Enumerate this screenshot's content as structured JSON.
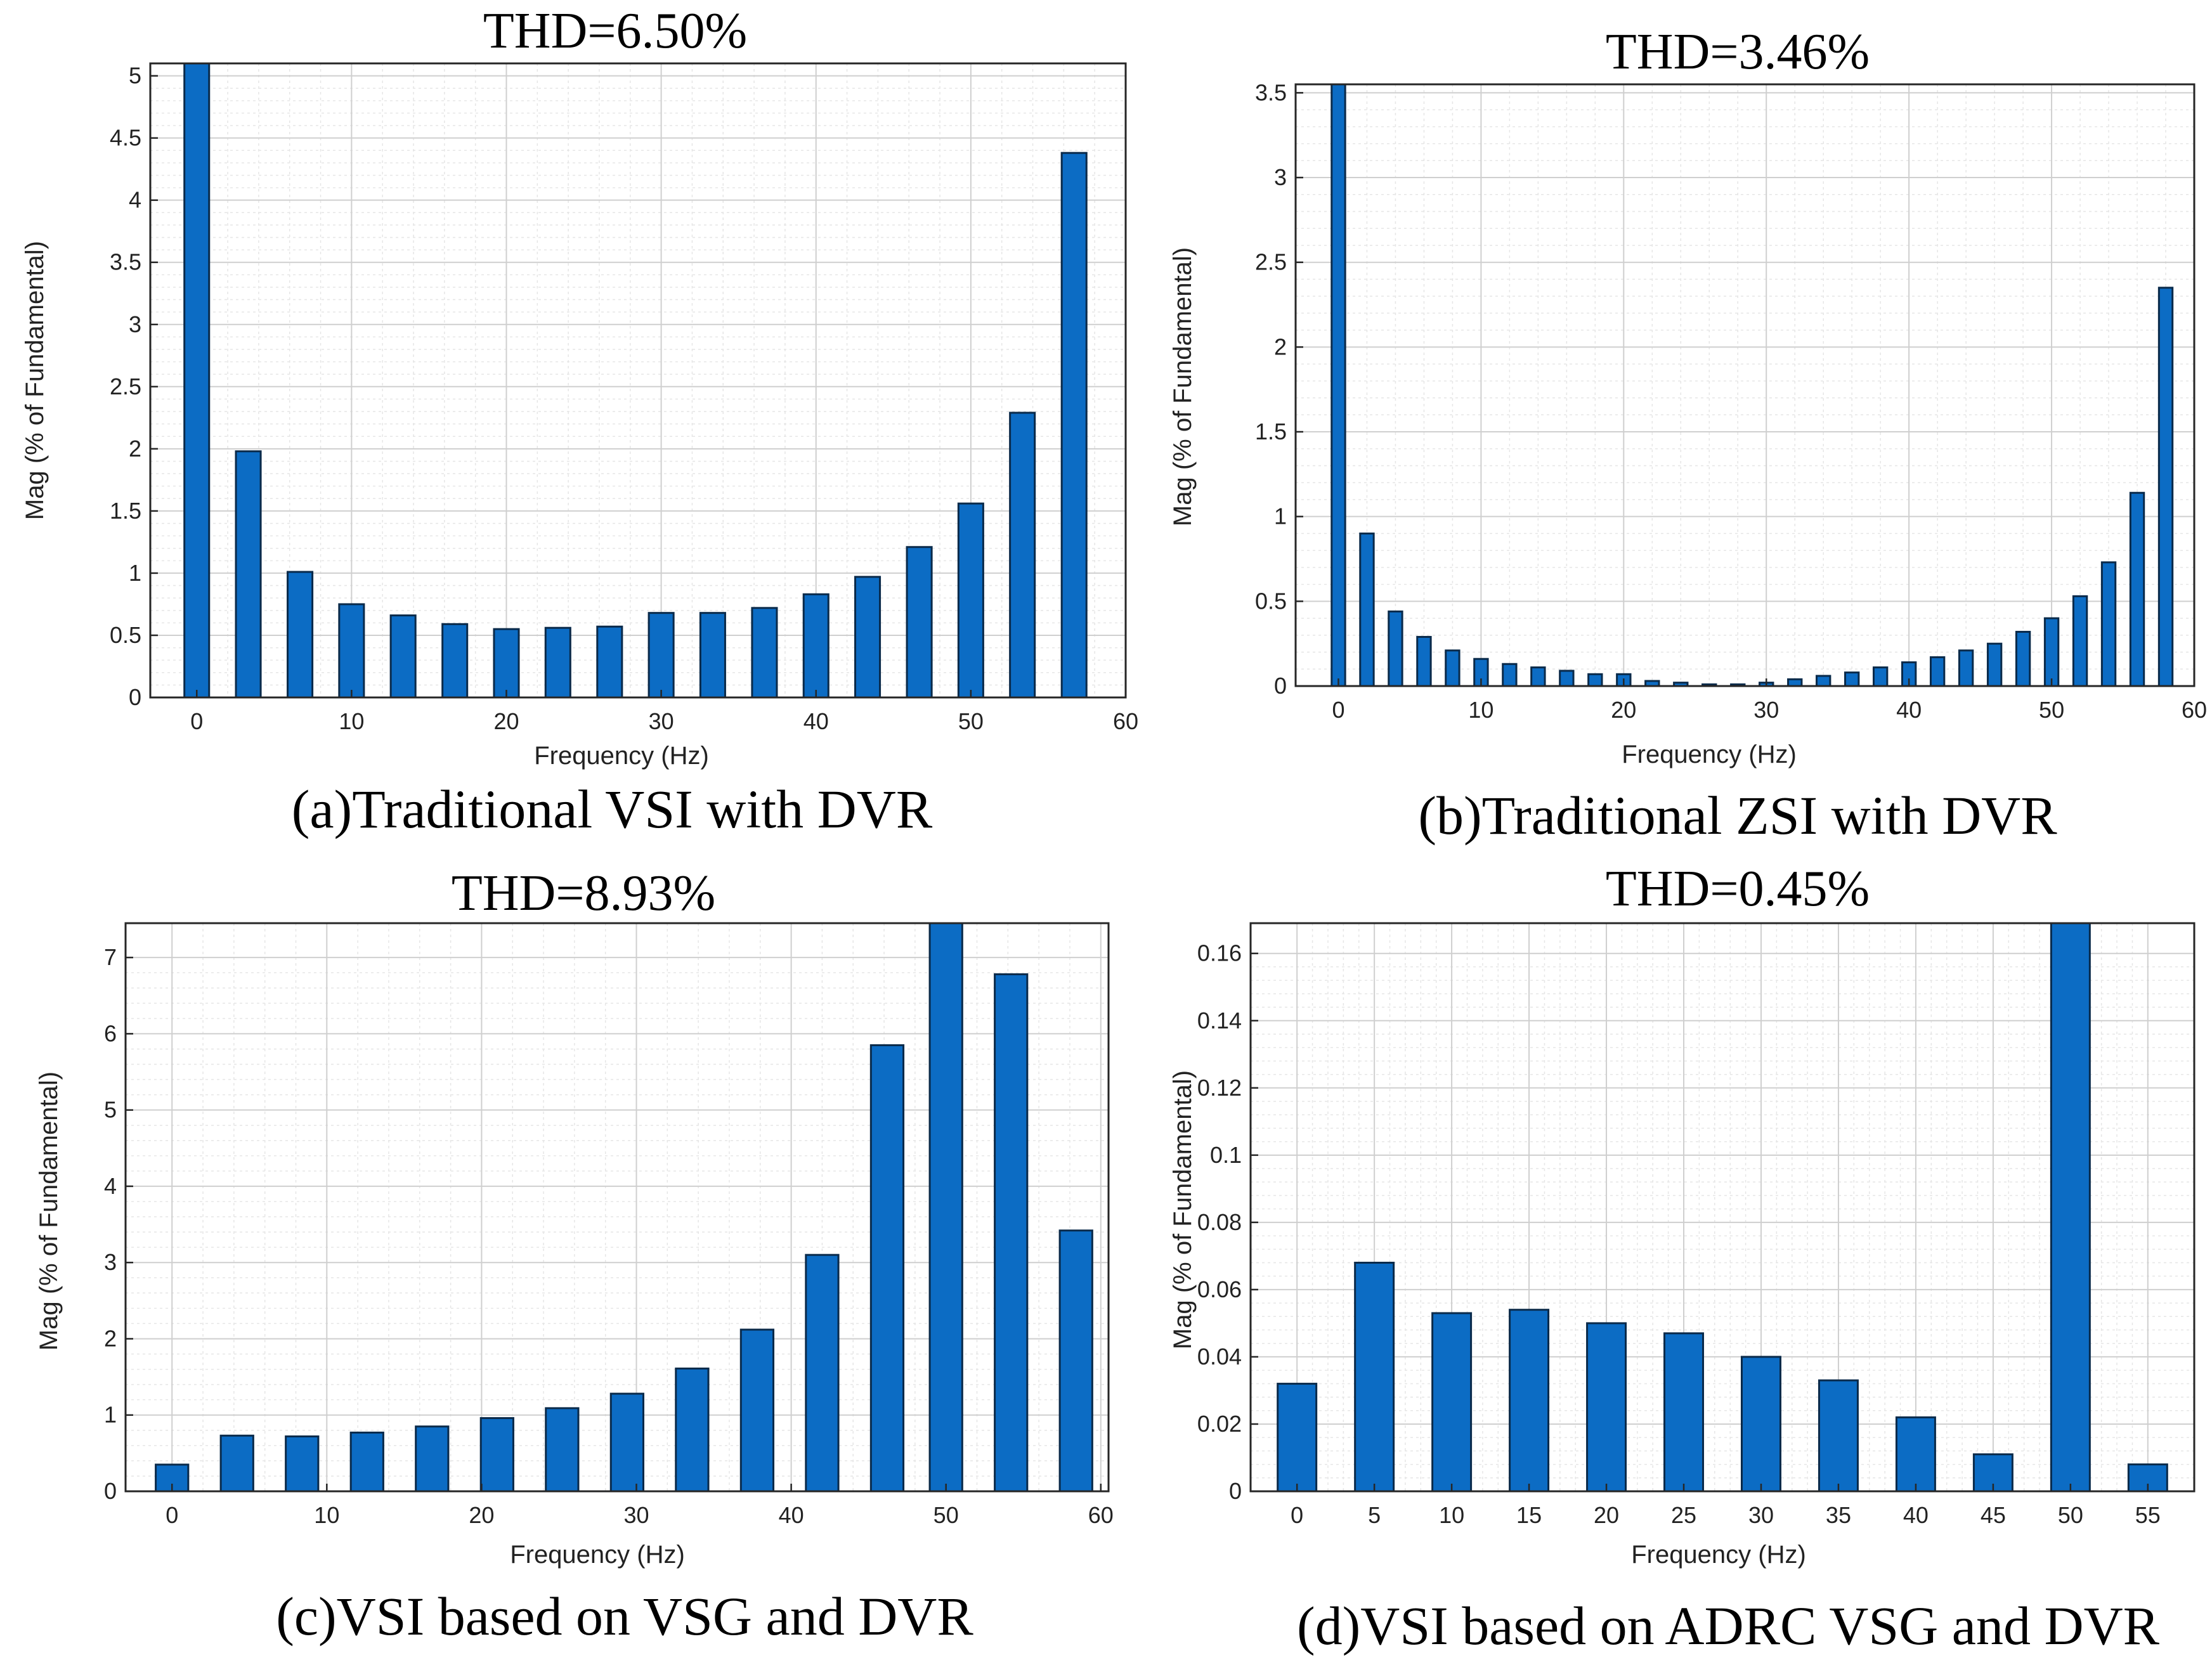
{
  "chart_data": [
    {
      "type": "bar",
      "title": "THD=6.50%",
      "caption": "(a)Traditional VSI with DVR",
      "xlabel": "Frequency (Hz)",
      "ylabel": "Mag (% of Fundamental)",
      "xlim": [
        -3,
        60
      ],
      "ylim": [
        0,
        5.1
      ],
      "xticks": [
        0,
        10,
        20,
        30,
        40,
        50,
        60
      ],
      "yticks": [
        0,
        0.5,
        1,
        1.5,
        2,
        2.5,
        3,
        3.5,
        4,
        4.5,
        5
      ],
      "ytick_labels": [
        "0",
        "0.5",
        "1",
        "1.5",
        "2",
        "2.5",
        "3",
        "3.5",
        "4",
        "4.5",
        "5"
      ],
      "bar_width": 1.6,
      "x": [
        0,
        3.33,
        6.67,
        10,
        13.33,
        16.67,
        20,
        23.33,
        26.67,
        30,
        33.33,
        36.67,
        40,
        43.33,
        46.67,
        50,
        53.33,
        56.67
      ],
      "values": [
        5.1,
        1.98,
        1.01,
        0.75,
        0.66,
        0.59,
        0.55,
        0.56,
        0.57,
        0.68,
        0.68,
        0.72,
        0.83,
        0.97,
        1.21,
        1.56,
        2.29,
        4.38
      ]
    },
    {
      "type": "bar",
      "title": "THD=3.46%",
      "caption": "(b)Traditional ZSI with DVR",
      "xlabel": "Frequency (Hz)",
      "ylabel": "Mag (% of Fundamental)",
      "xlim": [
        -3,
        60
      ],
      "ylim": [
        0,
        3.55
      ],
      "xticks": [
        0,
        10,
        20,
        30,
        40,
        50,
        60
      ],
      "yticks": [
        0,
        0.5,
        1,
        1.5,
        2,
        2.5,
        3,
        3.5
      ],
      "ytick_labels": [
        "0",
        "0.5",
        "1",
        "1.5",
        "2",
        "2.5",
        "3",
        "3.5"
      ],
      "bar_width": 0.95,
      "x": [
        0,
        2,
        4,
        6,
        8,
        10,
        12,
        14,
        16,
        18,
        20,
        22,
        24,
        26,
        28,
        30,
        32,
        34,
        36,
        38,
        40,
        42,
        44,
        46,
        48,
        50,
        52,
        54,
        56,
        58
      ],
      "values": [
        3.55,
        0.9,
        0.44,
        0.29,
        0.21,
        0.16,
        0.13,
        0.11,
        0.09,
        0.07,
        0.07,
        0.03,
        0.02,
        0.01,
        0.01,
        0.02,
        0.04,
        0.06,
        0.08,
        0.11,
        0.14,
        0.17,
        0.21,
        0.25,
        0.32,
        0.4,
        0.53,
        0.73,
        1.14,
        2.35
      ]
    },
    {
      "type": "bar",
      "title": "THD=8.93%",
      "caption": "(c)VSI based on VSG and DVR",
      "xlabel": "Frequency (Hz)",
      "ylabel": "Mag (% of Fundamental)",
      "xlim": [
        -3,
        60.5
      ],
      "ylim": [
        0,
        7.45
      ],
      "xticks": [
        0,
        10,
        20,
        30,
        40,
        50,
        60
      ],
      "yticks": [
        0,
        1,
        2,
        3,
        4,
        5,
        6,
        7
      ],
      "ytick_labels": [
        "0",
        "1",
        "2",
        "3",
        "4",
        "5",
        "6",
        "7"
      ],
      "bar_width": 2.1,
      "x": [
        0,
        4.2,
        8.4,
        12.6,
        16.8,
        21,
        25.2,
        29.4,
        33.6,
        37.8,
        42,
        46.2,
        50,
        54.2,
        58.4
      ],
      "values": [
        0.35,
        0.73,
        0.72,
        0.77,
        0.85,
        0.96,
        1.09,
        1.28,
        1.61,
        2.12,
        3.1,
        5.85,
        7.45,
        6.78,
        3.42
      ]
    },
    {
      "type": "bar",
      "title": "THD=0.45%",
      "caption": "(d)VSI based on ADRC VSG and DVR",
      "xlabel": "Frequency (Hz)",
      "ylabel": "Mag (% of Fundamental)",
      "xlim": [
        -3,
        58
      ],
      "ylim": [
        0,
        0.169
      ],
      "xticks": [
        0,
        5,
        10,
        15,
        20,
        25,
        30,
        35,
        40,
        45,
        50,
        55
      ],
      "yticks": [
        0,
        0.02,
        0.04,
        0.06,
        0.08,
        0.1,
        0.12,
        0.14,
        0.16
      ],
      "ytick_labels": [
        "0",
        "0.02",
        "0.04",
        "0.06",
        "0.08",
        "0.1",
        "0.12",
        "0.14",
        "0.16"
      ],
      "bar_width": 2.5,
      "x": [
        0,
        5,
        10,
        15,
        20,
        25,
        30,
        35,
        40,
        45,
        50,
        55
      ],
      "values": [
        0.032,
        0.068,
        0.053,
        0.054,
        0.05,
        0.047,
        0.04,
        0.033,
        0.022,
        0.011,
        0.169,
        0.008
      ]
    }
  ]
}
